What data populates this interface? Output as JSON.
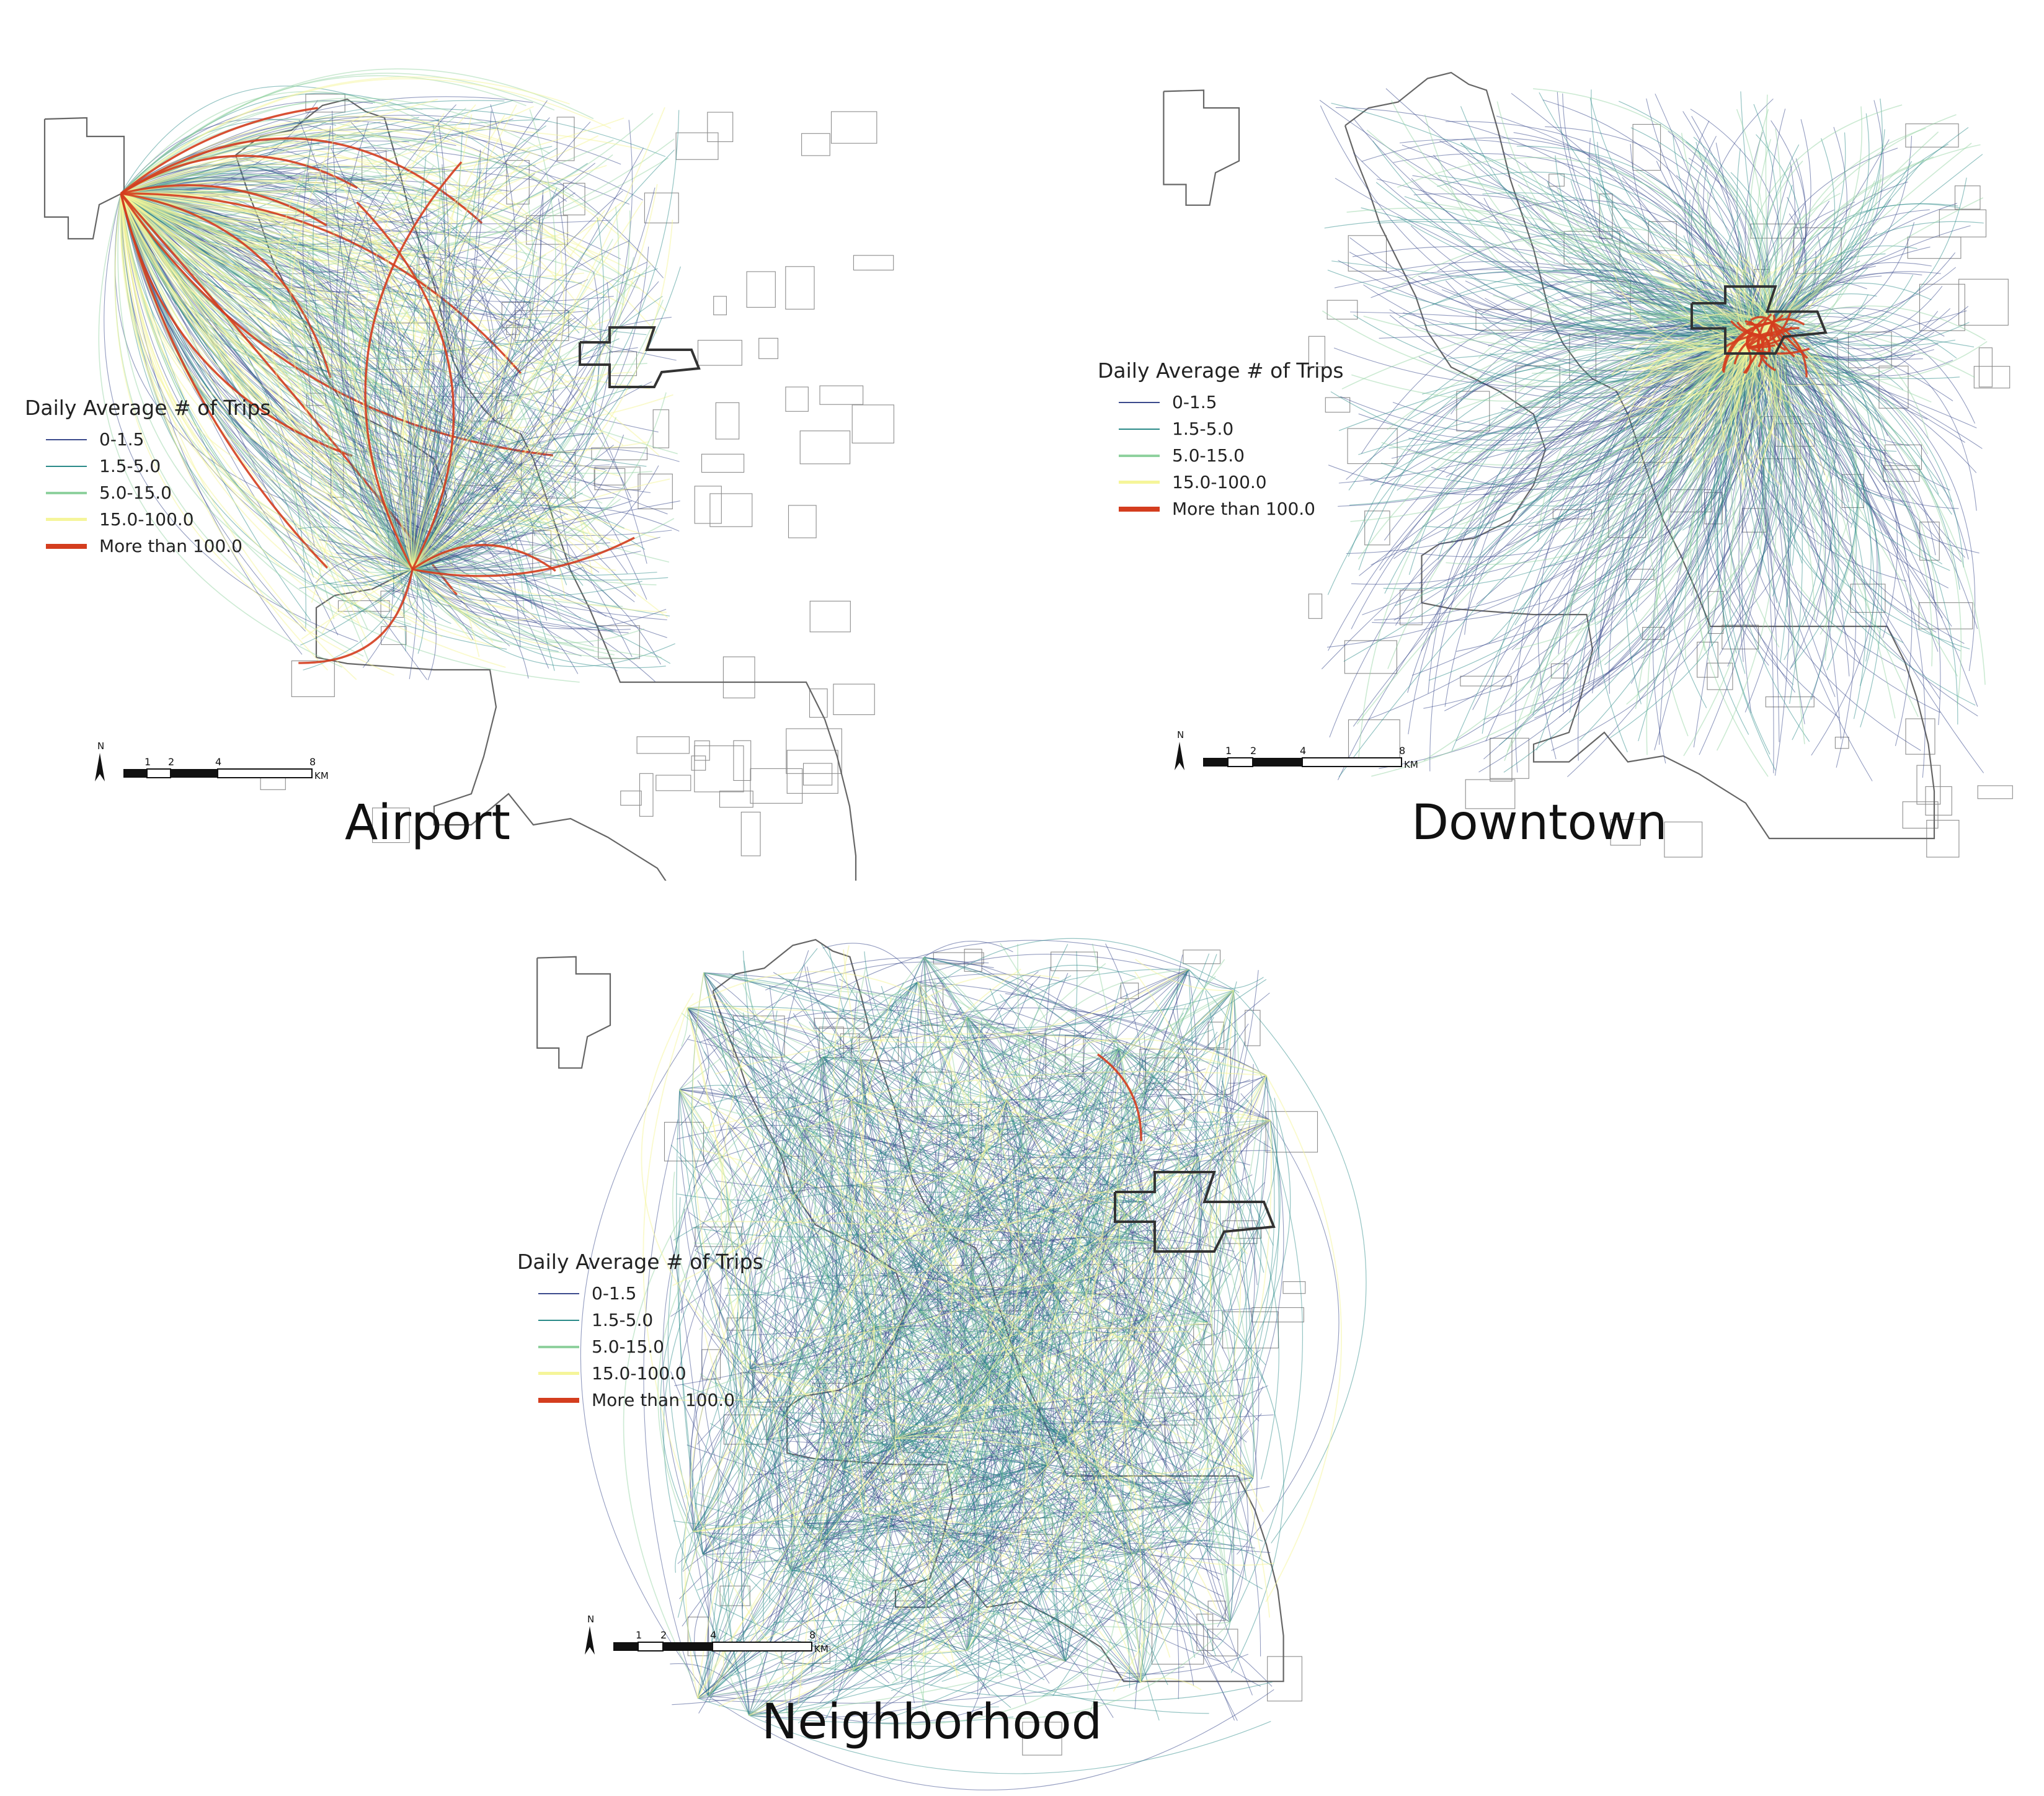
{
  "legend": {
    "title": "Daily Average # of Trips",
    "classes": [
      {
        "label": "0-1.5",
        "color": "#3b4a8c"
      },
      {
        "label": "1.5-5.0",
        "color": "#2a8a88"
      },
      {
        "label": "5.0-15.0",
        "color": "#8fd19e"
      },
      {
        "label": "15.0-100.0",
        "color": "#f5f59a"
      },
      {
        "label": "More than 100.0",
        "color": "#d43d1e"
      }
    ]
  },
  "scale_bar": {
    "north": "N",
    "ticks": [
      "1",
      "2",
      "4",
      "8"
    ],
    "unit": "KM"
  },
  "panels": {
    "airport": {
      "title": "Airport"
    },
    "downtown": {
      "title": "Downtown"
    },
    "neighborhood": {
      "title": "Neighborhood"
    }
  },
  "colors": {
    "boundary": "#666666",
    "downtown_outline": "#333333"
  }
}
